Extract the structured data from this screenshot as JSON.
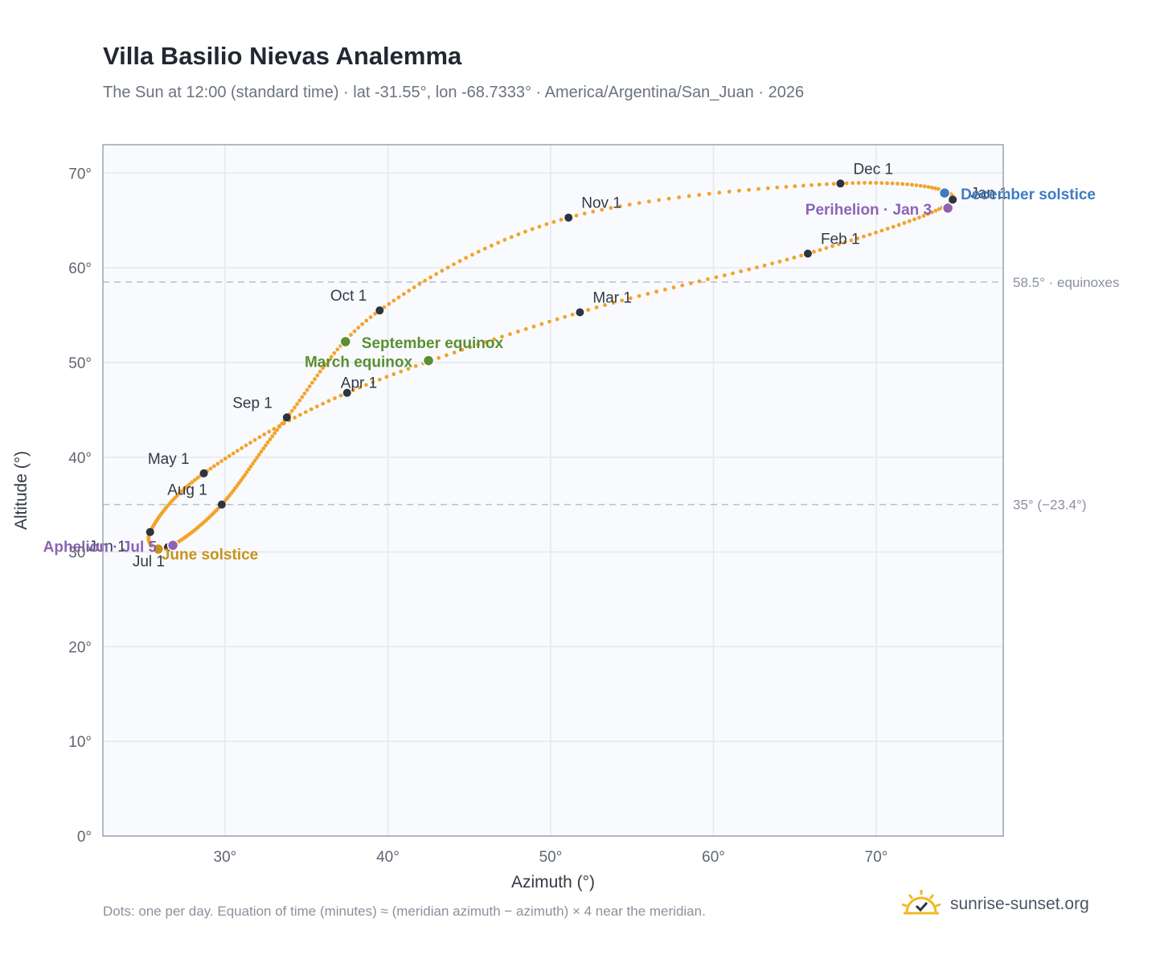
{
  "header": {
    "title": "Villa Basilio Nievas Analemma",
    "subtitle": "The Sun at 12:00 (standard time) · lat -31.55°, lon -68.7333° · America/Argentina/San_Juan · 2026"
  },
  "footer": {
    "note": "Dots: one per day. Equation of time (minutes) ≈ (meridian azimuth − azimuth) × 4 near the meridian.",
    "brand": "sunrise-sunset.org",
    "brand_icon": "sun-check-icon"
  },
  "colors": {
    "curve": "#f3a32a",
    "month_marker": "#2d3440",
    "equinox": "#5a8f32",
    "june_solstice": "#c8921a",
    "december_solstice": "#3e7cc2",
    "apsis": "#8e63b5",
    "plot_bg": "#f8fafd",
    "grid": "#e4e8ee",
    "reference": "#b8c0cc"
  },
  "chart_data": {
    "type": "scatter",
    "xlabel": "Azimuth (°)",
    "ylabel": "Altitude (°)",
    "xlim": [
      22.5,
      77.8
    ],
    "ylim": [
      0,
      73
    ],
    "xticks": [
      30,
      40,
      50,
      60,
      70
    ],
    "yticks": [
      0,
      10,
      20,
      30,
      40,
      50,
      60,
      70
    ],
    "tick_suffix": "°",
    "grid": true,
    "reference_lines": [
      {
        "y": 58.5,
        "label": "58.5° · equinoxes"
      },
      {
        "y": 35.0,
        "label": "35° (−23.4°)"
      }
    ],
    "month_markers": [
      {
        "label": "Jan 1",
        "day": 1,
        "az": 74.7,
        "alt": 67.2
      },
      {
        "label": "Feb 1",
        "day": 32,
        "az": 65.8,
        "alt": 61.5
      },
      {
        "label": "Mar 1",
        "day": 60,
        "az": 51.8,
        "alt": 55.3
      },
      {
        "label": "Apr 1",
        "day": 91,
        "az": 37.5,
        "alt": 46.8
      },
      {
        "label": "May 1",
        "day": 121,
        "az": 28.7,
        "alt": 38.3
      },
      {
        "label": "Jun 1",
        "day": 152,
        "az": 25.4,
        "alt": 32.1
      },
      {
        "label": "Jul 1",
        "day": 182,
        "az": 26.5,
        "alt": 30.5
      },
      {
        "label": "Aug 1",
        "day": 213,
        "az": 29.8,
        "alt": 35.0
      },
      {
        "label": "Sep 1",
        "day": 244,
        "az": 33.8,
        "alt": 44.2
      },
      {
        "label": "Oct 1",
        "day": 274,
        "az": 39.5,
        "alt": 55.5
      },
      {
        "label": "Nov 1",
        "day": 305,
        "az": 51.1,
        "alt": 65.3
      },
      {
        "label": "Dec 1",
        "day": 335,
        "az": 67.8,
        "alt": 68.9
      }
    ],
    "special_points": [
      {
        "label": "March equinox",
        "day": 79,
        "az": 42.5,
        "alt": 50.2,
        "kind": "equinox"
      },
      {
        "label": "June solstice",
        "day": 172,
        "az": 25.9,
        "alt": 30.3,
        "kind": "june_solstice"
      },
      {
        "label": "September equinox",
        "day": 265,
        "az": 37.4,
        "alt": 52.2,
        "kind": "equinox"
      },
      {
        "label": "December solstice",
        "day": 355,
        "az": 74.2,
        "alt": 67.9,
        "kind": "december_solstice"
      },
      {
        "label": "Perihelion · Jan 3",
        "day": 3,
        "az": 74.4,
        "alt": 66.3,
        "kind": "apsis"
      },
      {
        "label": "Aphelion · Jul 5",
        "day": 186,
        "az": 26.8,
        "alt": 30.7,
        "kind": "apsis"
      }
    ]
  }
}
